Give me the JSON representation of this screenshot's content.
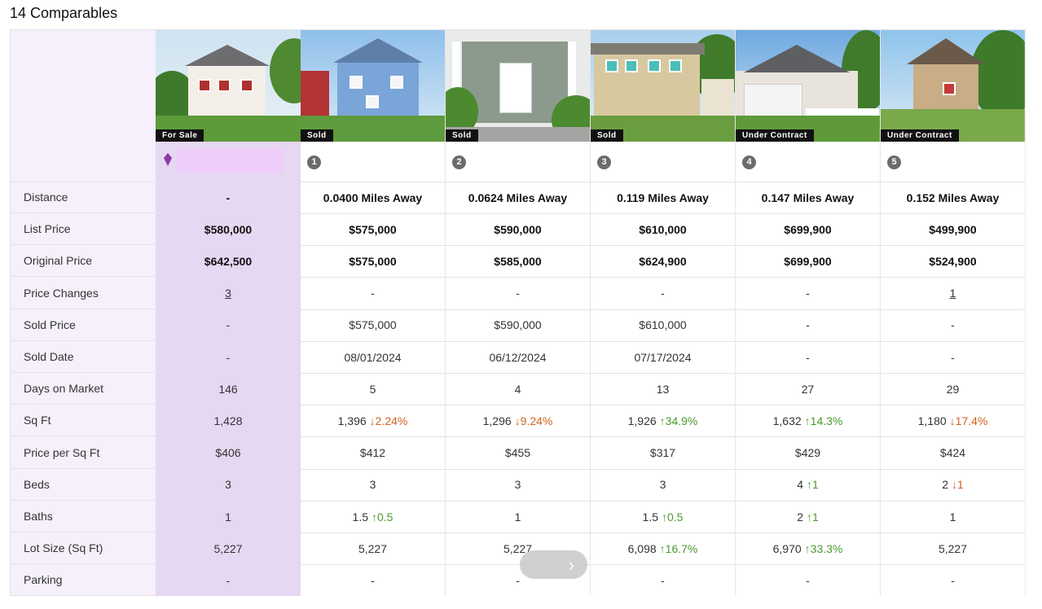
{
  "title": "14 Comparables",
  "row_labels": [
    "Distance",
    "List Price",
    "Original Price",
    "Price Changes",
    "Sold Price",
    "Sold Date",
    "Days on Market",
    "Sq Ft",
    "Price per Sq Ft",
    "Beds",
    "Baths",
    "Lot Size (Sq Ft)",
    "Parking"
  ],
  "subject": {
    "badge": "For Sale",
    "cells": [
      "-",
      "$580,000",
      "$642,500",
      "3",
      "-",
      "-",
      "146",
      "1,428",
      "$406",
      "3",
      "1",
      "5,227",
      "-"
    ]
  },
  "comps": [
    {
      "num": "1",
      "badge": "Sold",
      "distance": "0.0400 Miles Away",
      "list_price": "$575,000",
      "original_price": "$575,000",
      "price_changes": "-",
      "sold_price": "$575,000",
      "sold_date": "08/01/2024",
      "dom": "5",
      "sqft": "1,396",
      "sqft_delta": "↓2.24%",
      "sqft_dir": "down",
      "ppsf": "$412",
      "beds": "3",
      "beds_delta": "",
      "beds_dir": "",
      "baths": "1.5",
      "baths_delta": "↑0.5",
      "baths_dir": "up",
      "lot": "5,227",
      "lot_delta": "",
      "lot_dir": "",
      "parking": "-"
    },
    {
      "num": "2",
      "badge": "Sold",
      "distance": "0.0624 Miles Away",
      "list_price": "$590,000",
      "original_price": "$585,000",
      "price_changes": "-",
      "sold_price": "$590,000",
      "sold_date": "06/12/2024",
      "dom": "4",
      "sqft": "1,296",
      "sqft_delta": "↓9.24%",
      "sqft_dir": "down",
      "ppsf": "$455",
      "beds": "3",
      "beds_delta": "",
      "beds_dir": "",
      "baths": "1",
      "baths_delta": "",
      "baths_dir": "",
      "lot": "5,227",
      "lot_delta": "",
      "lot_dir": "",
      "parking": "-"
    },
    {
      "num": "3",
      "badge": "Sold",
      "distance": "0.119 Miles Away",
      "list_price": "$610,000",
      "original_price": "$624,900",
      "price_changes": "-",
      "sold_price": "$610,000",
      "sold_date": "07/17/2024",
      "dom": "13",
      "sqft": "1,926",
      "sqft_delta": "↑34.9%",
      "sqft_dir": "up",
      "ppsf": "$317",
      "beds": "3",
      "beds_delta": "",
      "beds_dir": "",
      "baths": "1.5",
      "baths_delta": "↑0.5",
      "baths_dir": "up",
      "lot": "6,098",
      "lot_delta": "↑16.7%",
      "lot_dir": "up",
      "parking": "-"
    },
    {
      "num": "4",
      "badge": "Under Contract",
      "distance": "0.147 Miles Away",
      "list_price": "$699,900",
      "original_price": "$699,900",
      "price_changes": "-",
      "sold_price": "-",
      "sold_date": "-",
      "dom": "27",
      "sqft": "1,632",
      "sqft_delta": "↑14.3%",
      "sqft_dir": "up",
      "ppsf": "$429",
      "beds": "4",
      "beds_delta": "↑1",
      "beds_dir": "up",
      "baths": "2",
      "baths_delta": "↑1",
      "baths_dir": "up",
      "lot": "6,970",
      "lot_delta": "↑33.3%",
      "lot_dir": "up",
      "parking": "-"
    },
    {
      "num": "5",
      "badge": "Under Contract",
      "distance": "0.152 Miles Away",
      "list_price": "$499,900",
      "original_price": "$524,900",
      "price_changes": "1",
      "sold_price": "-",
      "sold_date": "-",
      "dom": "29",
      "sqft": "1,180",
      "sqft_delta": "↓17.4%",
      "sqft_dir": "down",
      "ppsf": "$424",
      "beds": "2",
      "beds_delta": "↓1",
      "beds_dir": "down",
      "baths": "1",
      "baths_delta": "",
      "baths_dir": "",
      "lot": "5,227",
      "lot_delta": "",
      "lot_dir": "",
      "parking": "-"
    }
  ],
  "scroll_button": {
    "icon": "chevron-right-icon",
    "glyph": "›"
  },
  "colors": {
    "subject_bg": "#e6d7f2",
    "label_bg": "#f5f0fb",
    "up": "#4a9a2e",
    "down": "#d0621f",
    "pin": "#8b3aa8"
  }
}
